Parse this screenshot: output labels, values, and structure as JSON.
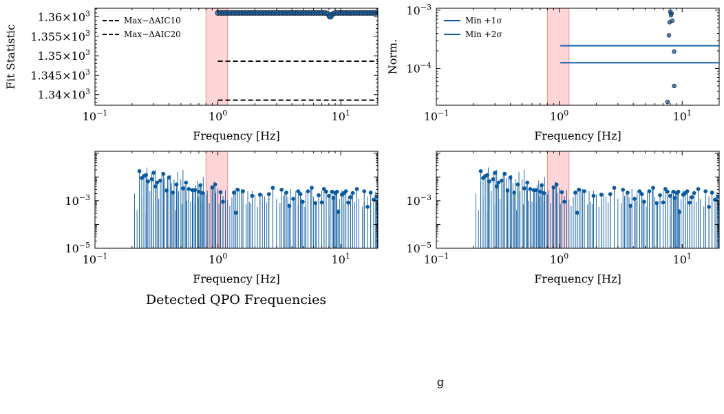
{
  "figure_title": "Detected QPO Frequencies",
  "bottom_caption": "g",
  "colors": {
    "series": "#0b5aa0",
    "shade": "#ffb3b8",
    "shade_edge": "#e88890",
    "dash": "#000000"
  },
  "chart_data": [
    {
      "id": "fit_statistic",
      "type": "scatter",
      "xlabel": "Frequency [Hz]",
      "ylabel": "Fit Statistic",
      "xscale": "log",
      "xlim": [
        0.1,
        20
      ],
      "ylim": [
        1337.3,
        1362.2
      ],
      "xticks": [
        {
          "v": 0.1,
          "b": "10",
          "e": "−1"
        },
        {
          "v": 1,
          "b": "10",
          "e": "0"
        },
        {
          "v": 10,
          "b": "10",
          "e": "1"
        }
      ],
      "yticks": [
        {
          "v": 1340,
          "b": "1.34",
          "e": "3"
        },
        {
          "v": 1345,
          "b": "1.345",
          "e": "3"
        },
        {
          "v": 1350,
          "b": "1.35",
          "e": "3"
        },
        {
          "v": 1355,
          "b": "1.355",
          "e": "3"
        },
        {
          "v": 1360,
          "b": "1.36",
          "e": "3"
        }
      ],
      "shaded_band": [
        0.8,
        1.2
      ],
      "points": {
        "x_start": 1.0,
        "x_end": 20,
        "y": 1361.0,
        "dip_x": 8.2,
        "dip_y": 1360.2
      },
      "hlines": [
        {
          "label": "Max−ΔAIC10",
          "y": 1348.6,
          "x_from": 1.0,
          "style": "dashed"
        },
        {
          "label": "Max−ΔAIC20",
          "y": 1338.6,
          "x_from": 1.0,
          "style": "dashed"
        }
      ],
      "legend": "upper-left"
    },
    {
      "id": "norm",
      "type": "scatter",
      "xlabel": "Frequency [Hz]",
      "ylabel": "Norm.",
      "xscale": "log",
      "yscale": "log",
      "xlim": [
        0.1,
        20
      ],
      "ylim": [
        2.33e-05,
        0.00108
      ],
      "xticks": [
        {
          "v": 0.1,
          "b": "10",
          "e": "−1"
        },
        {
          "v": 1,
          "b": "10",
          "e": "0"
        },
        {
          "v": 10,
          "b": "10",
          "e": "1"
        }
      ],
      "yticks": [
        {
          "v": 0.0001,
          "b": "10",
          "e": "−4"
        },
        {
          "v": 0.001,
          "b": "10",
          "e": "−3"
        }
      ],
      "shaded_band": [
        0.8,
        1.2
      ],
      "points": [
        {
          "x": 8.0,
          "y": 0.00094
        },
        {
          "x": 8.2,
          "y": 0.00088
        },
        {
          "x": 8.1,
          "y": 0.00082
        },
        {
          "x": 7.9,
          "y": 0.00062
        },
        {
          "x": 8.3,
          "y": 0.00066
        },
        {
          "x": 7.8,
          "y": 0.00037
        },
        {
          "x": 8.6,
          "y": 0.000195
        },
        {
          "x": 8.6,
          "y": 5e-05
        },
        {
          "x": 7.6,
          "y": 2.65e-05
        }
      ],
      "hlines": [
        {
          "label": "Min +1σ",
          "y": 0.000245,
          "x_from": 1.02
        },
        {
          "label": "Min +2σ",
          "y": 0.000125,
          "x_from": 1.02
        }
      ],
      "legend": "upper-left"
    },
    {
      "id": "power_left",
      "type": "stem",
      "xlabel": "Frequency [Hz]",
      "ylabel": "",
      "xscale": "log",
      "yscale": "log",
      "xlim": [
        0.1,
        20
      ],
      "ylim": [
        1e-05,
        0.12
      ],
      "xticks": [
        {
          "v": 0.1,
          "b": "10",
          "e": "−1"
        },
        {
          "v": 1,
          "b": "10",
          "e": "0"
        },
        {
          "v": 10,
          "b": "10",
          "e": "1"
        }
      ],
      "yticks": [
        {
          "v": 1e-05,
          "b": "10",
          "e": "−5"
        },
        {
          "v": 0.001,
          "b": "10",
          "e": "−3"
        }
      ],
      "shaded_band": [
        0.8,
        1.2
      ],
      "stems": [
        [
          0.21,
          0.002
        ],
        [
          0.22,
          0.0004
        ],
        [
          0.23,
          0.006
        ],
        [
          0.24,
          0.0015
        ],
        [
          0.25,
          0.012
        ],
        [
          0.26,
          0.0003
        ],
        [
          0.265,
          0.025
        ],
        [
          0.27,
          0.008
        ],
        [
          0.28,
          0.0025
        ],
        [
          0.29,
          0.015
        ],
        [
          0.3,
          0.0007
        ],
        [
          0.31,
          0.02
        ],
        [
          0.32,
          0.005
        ],
        [
          0.33,
          0.0012
        ],
        [
          0.34,
          0.004
        ],
        [
          0.35,
          0.016
        ],
        [
          0.36,
          0.006
        ],
        [
          0.37,
          0.009
        ],
        [
          0.38,
          0.0009
        ],
        [
          0.39,
          0.01
        ],
        [
          0.4,
          0.0035
        ],
        [
          0.41,
          0.012
        ],
        [
          0.42,
          0.0055
        ],
        [
          0.43,
          0.0018
        ],
        [
          0.44,
          0.008
        ],
        [
          0.45,
          0.0004
        ],
        [
          0.46,
          0.003
        ],
        [
          0.47,
          0.0165
        ],
        [
          0.48,
          0.0025
        ],
        [
          0.5,
          0.008
        ],
        [
          0.51,
          0.0007
        ],
        [
          0.52,
          0.02
        ],
        [
          0.54,
          0.0045
        ],
        [
          0.55,
          0.0028
        ],
        [
          0.56,
          0.001
        ],
        [
          0.58,
          0.0038
        ],
        [
          0.6,
          0.0009
        ],
        [
          0.62,
          0.0013
        ],
        [
          0.63,
          0.0032
        ],
        [
          0.65,
          0.0008
        ],
        [
          0.66,
          0.0045
        ],
        [
          0.68,
          0.007
        ],
        [
          0.69,
          0.0015
        ],
        [
          0.7,
          0.004
        ],
        [
          0.72,
          0.0012
        ],
        [
          0.73,
          0.0055
        ],
        [
          0.75,
          0.0009
        ],
        [
          0.76,
          0.01
        ],
        [
          0.78,
          0.0023
        ],
        [
          0.8,
          0.0018
        ],
        [
          0.82,
          0.0027
        ],
        [
          0.85,
          0.0008
        ],
        [
          0.88,
          0.0045
        ],
        [
          0.9,
          0.0025
        ],
        [
          0.93,
          0.0065
        ],
        [
          0.96,
          0.0021
        ],
        [
          1.0,
          0.0034
        ],
        [
          1.02,
          0.00075
        ],
        [
          1.05,
          0.0025
        ],
        [
          1.1,
          0.0016
        ],
        [
          1.15,
          0.0028
        ],
        [
          1.2,
          0.0011
        ],
        [
          1.25,
          0.0006
        ],
        [
          1.3,
          0.0014
        ],
        [
          1.35,
          0.0019
        ],
        [
          1.4,
          0.0034
        ],
        [
          1.45,
          0.00022
        ],
        [
          1.5,
          0.0029
        ],
        [
          1.55,
          0.0031
        ],
        [
          1.6,
          0.0012
        ],
        [
          1.7,
          0.0007
        ],
        [
          1.75,
          0.0025
        ],
        [
          1.8,
          0.0009
        ],
        [
          1.85,
          0.00075
        ],
        [
          1.9,
          0.0026
        ],
        [
          2.0,
          0.0018
        ],
        [
          2.1,
          0.00055
        ],
        [
          2.2,
          0.0012
        ],
        [
          2.3,
          0.0019
        ],
        [
          2.4,
          0.0015
        ],
        [
          2.5,
          0.00085
        ],
        [
          2.6,
          0.0022
        ],
        [
          2.8,
          0.0036
        ],
        [
          3.0,
          0.0012
        ],
        [
          3.2,
          0.0008
        ],
        [
          3.4,
          0.0016
        ],
        [
          3.5,
          0.0024
        ],
        [
          3.6,
          0.0021
        ],
        [
          3.7,
          0.0014
        ],
        [
          3.8,
          0.00045
        ],
        [
          3.9,
          0.0031
        ],
        [
          4.1,
          0.0015
        ],
        [
          4.2,
          0.001
        ],
        [
          4.3,
          0.0025
        ],
        [
          4.5,
          0.0006
        ],
        [
          4.7,
          0.0024
        ],
        [
          4.8,
          0.0012
        ],
        [
          5.1,
          0.00055
        ],
        [
          5.2,
          0.0022
        ],
        [
          5.4,
          0.0009
        ],
        [
          5.7,
          0.0032
        ],
        [
          6.0,
          0.0015
        ],
        [
          6.3,
          0.0007
        ],
        [
          6.6,
          0.0012
        ],
        [
          7.0,
          0.0026
        ],
        [
          7.3,
          0.00075
        ],
        [
          7.6,
          0.0029
        ],
        [
          8.0,
          0.00025
        ],
        [
          8.2,
          0.0025
        ],
        [
          8.5,
          0.0013
        ],
        [
          8.8,
          0.0017
        ],
        [
          9.0,
          0.0008
        ],
        [
          9.2,
          0.0023
        ],
        [
          9.5,
          0.00045
        ],
        [
          9.8,
          0.0012
        ],
        [
          10.2,
          0.0028
        ],
        [
          10.6,
          0.0007
        ],
        [
          11.0,
          0.0021
        ],
        [
          11.5,
          0.0016
        ],
        [
          12.0,
          0.0018
        ],
        [
          12.5,
          0.00058
        ],
        [
          13.0,
          0.0009
        ],
        [
          13.5,
          0.0025
        ],
        [
          14.0,
          0.0012
        ],
        [
          15.0,
          0.00058
        ],
        [
          15.5,
          0.00095
        ],
        [
          16.5,
          0.0015
        ],
        [
          17.5,
          0.0009
        ],
        [
          18.5,
          0.00055
        ],
        [
          19.2,
          0.0024
        ],
        [
          19.8,
          0.0009
        ],
        [
          20.0,
          0.0006
        ]
      ],
      "markers": [
        [
          0.23,
          0.0175
        ],
        [
          0.24,
          0.009
        ],
        [
          0.25,
          0.011
        ],
        [
          0.26,
          0.012
        ],
        [
          0.27,
          0.0065
        ],
        [
          0.29,
          0.008
        ],
        [
          0.3,
          0.015
        ],
        [
          0.31,
          0.004
        ],
        [
          0.32,
          0.0058
        ],
        [
          0.34,
          0.007
        ],
        [
          0.36,
          0.0135
        ],
        [
          0.38,
          0.0027
        ],
        [
          0.4,
          0.0095
        ],
        [
          0.43,
          0.0022
        ],
        [
          0.46,
          0.0048
        ],
        [
          0.52,
          0.0033
        ],
        [
          0.55,
          0.0058
        ],
        [
          0.58,
          0.0031
        ],
        [
          0.62,
          0.0028
        ],
        [
          0.65,
          0.0028
        ],
        [
          0.7,
          0.0024
        ],
        [
          0.72,
          0.0045
        ],
        [
          0.75,
          0.0021
        ],
        [
          0.9,
          0.0036
        ],
        [
          0.95,
          0.0048
        ],
        [
          1.05,
          0.0023
        ],
        [
          1.1,
          0.0009
        ],
        [
          1.35,
          0.0022
        ],
        [
          1.4,
          0.00031
        ],
        [
          1.45,
          0.0029
        ],
        [
          1.6,
          0.0025
        ],
        [
          1.9,
          0.0016
        ],
        [
          2.2,
          0.0018
        ],
        [
          2.6,
          0.0019
        ],
        [
          2.8,
          0.0035
        ],
        [
          3.3,
          0.0029
        ],
        [
          3.6,
          0.0022
        ],
        [
          3.8,
          0.00061
        ],
        [
          4.1,
          0.0012
        ],
        [
          4.5,
          0.0025
        ],
        [
          4.7,
          0.0019
        ],
        [
          4.9,
          0.0009
        ],
        [
          5.4,
          0.0025
        ],
        [
          5.8,
          0.0035
        ],
        [
          6.2,
          0.0008
        ],
        [
          6.6,
          0.0017
        ],
        [
          7.0,
          0.00085
        ],
        [
          7.3,
          0.0031
        ],
        [
          7.6,
          0.0024
        ],
        [
          8.0,
          0.0016
        ],
        [
          8.5,
          0.0024
        ],
        [
          8.7,
          0.0013
        ],
        [
          9.0,
          0.0021
        ],
        [
          9.3,
          0.0024
        ],
        [
          9.5,
          0.00034
        ],
        [
          10.2,
          0.0018
        ],
        [
          10.6,
          0.0021
        ],
        [
          11.0,
          0.0025
        ],
        [
          11.5,
          0.00083
        ],
        [
          12.0,
          0.0014
        ],
        [
          12.5,
          0.0021
        ],
        [
          13.5,
          0.0031
        ],
        [
          15.5,
          0.0025
        ],
        [
          16.5,
          0.00055
        ],
        [
          17.5,
          0.0022
        ],
        [
          18.5,
          0.0011
        ],
        [
          19.5,
          0.0015
        ],
        [
          20.0,
          0.00046
        ]
      ]
    },
    {
      "id": "power_right",
      "type": "stem",
      "xlabel": "Frequency [Hz]",
      "ylabel": "",
      "xscale": "log",
      "yscale": "log",
      "xlim": [
        0.1,
        20
      ],
      "ylim": [
        1e-05,
        0.12
      ],
      "xticks": [
        {
          "v": 0.1,
          "b": "10",
          "e": "−1"
        },
        {
          "v": 1,
          "b": "10",
          "e": "0"
        },
        {
          "v": 10,
          "b": "10",
          "e": "1"
        }
      ],
      "yticks": [
        {
          "v": 1e-05,
          "b": "10",
          "e": "−5"
        },
        {
          "v": 0.001,
          "b": "10",
          "e": "−3"
        }
      ],
      "shaded_band": [
        0.8,
        1.2
      ],
      "same_as": "power_left"
    }
  ]
}
